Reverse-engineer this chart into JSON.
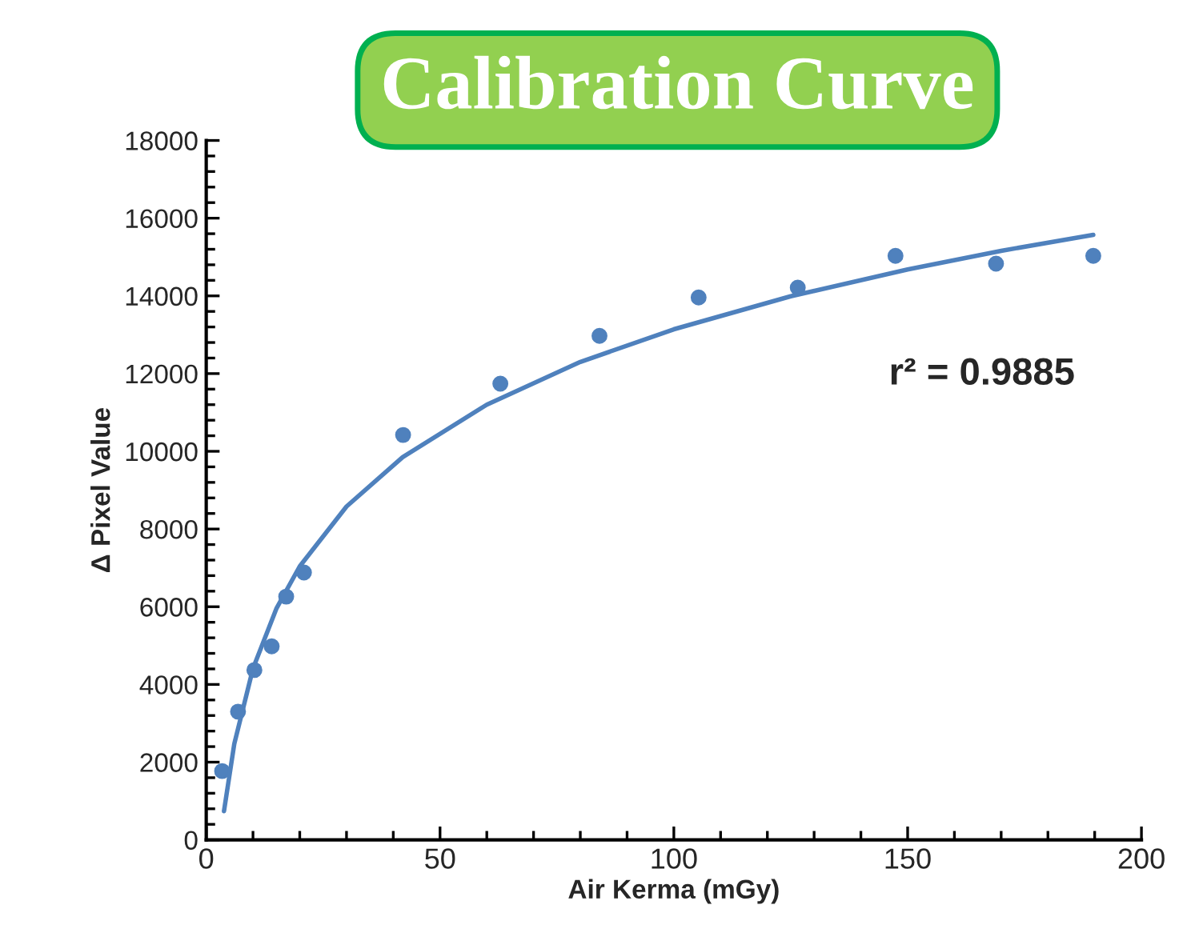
{
  "chart_data": {
    "type": "scatter",
    "title": "Calibration Curve",
    "xlabel": "Air Kerma (mGy)",
    "ylabel": "Δ Pixel Value",
    "annotations": [
      "r² = 0.9885"
    ],
    "series": [
      {
        "color": "#4f81bd",
        "marker": "circle",
        "x": [
          3.4,
          6.8,
          10.3,
          14.0,
          17.1,
          20.9,
          42.1,
          62.9,
          84.1,
          105.3,
          126.5,
          147.4,
          168.9,
          189.7
        ],
        "values": [
          1770,
          3300,
          4370,
          4980,
          6260,
          6880,
          10420,
          11740,
          12970,
          13960,
          14210,
          15030,
          14830,
          15030
        ]
      },
      {
        "type": "line",
        "color": "#4f81bd",
        "x": [
          3.8,
          6,
          10,
          15,
          20,
          30,
          42,
          60,
          80,
          100,
          125,
          150,
          170,
          189.7
        ],
        "values": [
          740,
          2470,
          4410,
          5950,
          7040,
          8580,
          9850,
          11200,
          12300,
          13140,
          13990,
          14680,
          15160,
          15570
        ]
      }
    ],
    "xlim": [
      0,
      200
    ],
    "xticks": [
      0,
      50,
      100,
      150,
      200
    ],
    "ylim": [
      0,
      18000
    ],
    "yticks": [
      0,
      2000,
      4000,
      6000,
      8000,
      10000,
      12000,
      14000,
      16000,
      18000
    ],
    "grid": false,
    "legend": false
  }
}
